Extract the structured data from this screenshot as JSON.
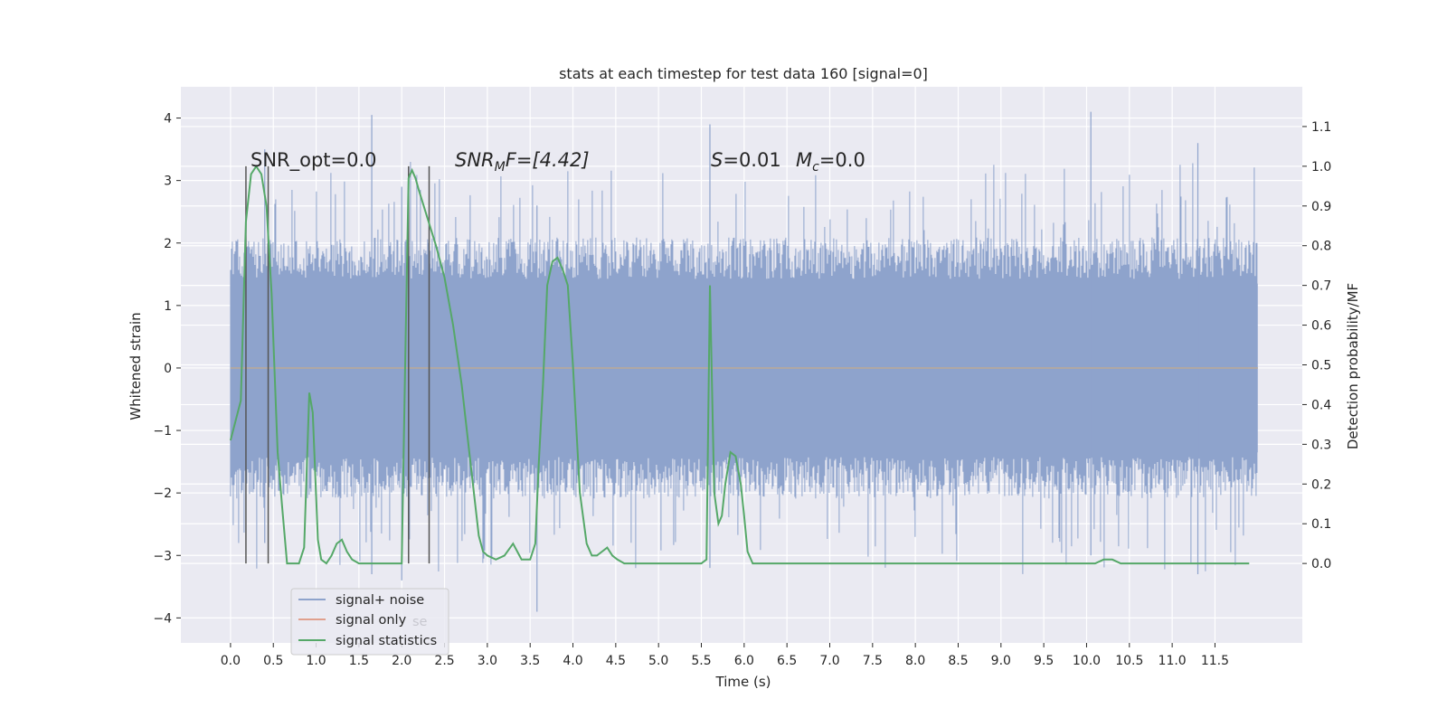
{
  "chart_data": {
    "type": "line",
    "title": "stats at each timestep for test data 160 [signal=0]",
    "xlabel": "Time (s)",
    "ylabel_left": "Whitened strain",
    "ylabel_right": "Detection probability/MF",
    "xlim": [
      -0.58,
      12.52
    ],
    "ylim_left": [
      -4.4,
      4.5
    ],
    "ylim_right": [
      -0.2,
      1.2
    ],
    "x_ticks": [
      "0.0",
      "0.5",
      "1.0",
      "1.5",
      "2.0",
      "2.5",
      "3.0",
      "3.5",
      "4.0",
      "4.5",
      "5.0",
      "5.5",
      "6.0",
      "6.5",
      "7.0",
      "7.5",
      "8.0",
      "8.5",
      "9.0",
      "9.5",
      "10.0",
      "10.5",
      "11.0",
      "11.5"
    ],
    "y_ticks_left": [
      "4",
      "3",
      "2",
      "1",
      "0",
      "−1",
      "−2",
      "−3",
      "−4"
    ],
    "y_ticks_right": [
      "1.1",
      "1.0",
      "0.9",
      "0.8",
      "0.7",
      "0.6",
      "0.5",
      "0.4",
      "0.3",
      "0.2",
      "0.1",
      "0.0"
    ],
    "grid": true,
    "legend_position": "lower-left",
    "legend": [
      {
        "label": "signal+ noise",
        "color": "#8ea3cc"
      },
      {
        "label": "signal only",
        "color": "#e0a08e"
      },
      {
        "label": "signal statistics",
        "color": "#55a868"
      }
    ],
    "legend_ghost_text": "se",
    "annotations": {
      "snr_opt": "SNR_opt=0.0",
      "snr_mf_main": "SNR",
      "snr_mf_sub": "M",
      "snr_mf_rest": "F=[4.42]",
      "s_symbol": "S",
      "s_value": "=0.01",
      "mc_main": "M",
      "mc_sub": "c",
      "mc_value": "=0.0"
    },
    "colors": {
      "noise": "#8ea3cc",
      "signal_only": "#b0a8a4",
      "statistics": "#55a868",
      "marker_lines": "#555555",
      "background": "#eaeaf2",
      "grid": "#ffffff"
    },
    "series": [
      {
        "name": "signal+ noise",
        "x_range": [
          0.0,
          12.0
        ],
        "envelope_typical": [
          -1.9,
          1.9
        ],
        "extremes": [
          -3.9,
          4.1
        ]
      },
      {
        "name": "signal only",
        "x_range": [
          0.0,
          12.0
        ],
        "values_constant": 0.0
      },
      {
        "name": "signal statistics",
        "axis": "right",
        "x": [
          0.0,
          0.12,
          0.18,
          0.24,
          0.3,
          0.36,
          0.42,
          0.48,
          0.55,
          0.6,
          0.66,
          0.72,
          0.8,
          0.86,
          0.92,
          0.96,
          1.02,
          1.06,
          1.12,
          1.18,
          1.24,
          1.3,
          1.36,
          1.42,
          1.5,
          1.6,
          1.8,
          2.0,
          2.04,
          2.08,
          2.12,
          2.16,
          2.2,
          2.3,
          2.4,
          2.5,
          2.6,
          2.7,
          2.8,
          2.9,
          2.95,
          3.0,
          3.1,
          3.2,
          3.3,
          3.35,
          3.4,
          3.5,
          3.56,
          3.6,
          3.65,
          3.7,
          3.76,
          3.82,
          3.88,
          3.94,
          4.0,
          4.08,
          4.16,
          4.22,
          4.28,
          4.34,
          4.4,
          4.46,
          4.52,
          4.6,
          4.8,
          5.0,
          5.3,
          5.5,
          5.56,
          5.6,
          5.65,
          5.7,
          5.74,
          5.78,
          5.84,
          5.9,
          5.96,
          6.0,
          6.04,
          6.1,
          6.16,
          6.22,
          6.3,
          6.4,
          6.5,
          6.6,
          7.0,
          8.0,
          8.5,
          9.0,
          9.5,
          10.0,
          10.1,
          10.2,
          10.3,
          10.4,
          10.5,
          10.6,
          10.7,
          10.8,
          11.0,
          11.5,
          11.9
        ],
        "y": [
          0.31,
          0.41,
          0.86,
          0.98,
          1.0,
          0.98,
          0.9,
          0.68,
          0.28,
          0.15,
          0.0,
          0.0,
          0.0,
          0.04,
          0.43,
          0.38,
          0.06,
          0.01,
          0.0,
          0.02,
          0.05,
          0.06,
          0.03,
          0.01,
          0.0,
          0.0,
          0.0,
          0.0,
          0.5,
          0.97,
          0.99,
          0.97,
          0.94,
          0.87,
          0.8,
          0.72,
          0.6,
          0.45,
          0.26,
          0.07,
          0.03,
          0.02,
          0.01,
          0.02,
          0.05,
          0.03,
          0.01,
          0.01,
          0.05,
          0.25,
          0.45,
          0.7,
          0.76,
          0.77,
          0.74,
          0.7,
          0.5,
          0.18,
          0.05,
          0.02,
          0.02,
          0.03,
          0.04,
          0.02,
          0.01,
          0.0,
          0.0,
          0.0,
          0.0,
          0.0,
          0.01,
          0.7,
          0.18,
          0.1,
          0.12,
          0.2,
          0.28,
          0.27,
          0.2,
          0.12,
          0.03,
          0.0,
          0.0,
          0.0,
          0.0,
          0.0,
          0.0,
          0.0,
          0.0,
          0.0,
          0.0,
          0.0,
          0.0,
          0.0,
          0.0,
          0.01,
          0.01,
          0.0,
          0.0,
          0.0,
          0.0,
          0.0,
          0.0,
          0.0,
          0.0
        ]
      }
    ],
    "marker_lines_x": [
      0.18,
      0.44,
      2.08,
      2.32
    ]
  }
}
